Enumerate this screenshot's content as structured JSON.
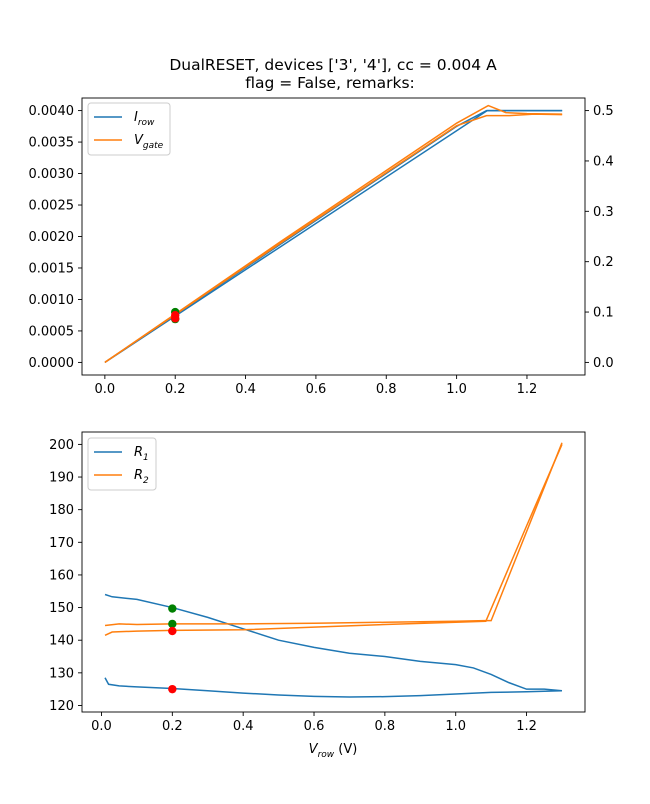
{
  "chart_data": [
    {
      "type": "line",
      "title_lines": [
        "DualRESET, devices ['3', '4'], cc = 0.004 A",
        "flag = False, remarks:"
      ],
      "xlabel": "",
      "ylabel_left": "",
      "ylabel_right": "",
      "xlim": [
        -0.065,
        1.365
      ],
      "ylim_left": [
        -0.0002,
        0.0042
      ],
      "ylim_right": [
        -0.025,
        0.525
      ],
      "xticks": [
        0.0,
        0.2,
        0.4,
        0.6,
        0.8,
        1.0,
        1.2
      ],
      "xtick_labels": [
        "0.0",
        "0.2",
        "0.4",
        "0.6",
        "0.8",
        "1.0",
        "1.2"
      ],
      "yticks_left": [
        0.0,
        0.0005,
        0.001,
        0.0015,
        0.002,
        0.0025,
        0.003,
        0.0035,
        0.004
      ],
      "ytick_labels_left": [
        "0.0000",
        "0.0005",
        "0.0010",
        "0.0015",
        "0.0020",
        "0.0025",
        "0.0030",
        "0.0035",
        "0.0040"
      ],
      "yticks_right": [
        0.0,
        0.1,
        0.2,
        0.3,
        0.4,
        0.5
      ],
      "ytick_labels_right": [
        "0.0",
        "0.1",
        "0.2",
        "0.3",
        "0.4",
        "0.5"
      ],
      "legend_position": "upper-left",
      "grid": false,
      "series": [
        {
          "name": "I_row",
          "label_main": "I",
          "label_sub": "row",
          "color": "#1f77b4",
          "axis": "left",
          "lines": [
            [
              [
                0.0,
                0.0
              ],
              [
                0.5,
                0.00184
              ],
              [
                1.0,
                0.00368
              ],
              [
                1.087,
                0.004
              ],
              [
                1.3,
                0.004
              ]
            ],
            [
              [
                0.0,
                0.0
              ],
              [
                0.5,
                0.00188
              ],
              [
                1.0,
                0.00375
              ],
              [
                1.085,
                0.004
              ],
              [
                1.3,
                0.004
              ]
            ]
          ]
        },
        {
          "name": "V_gate",
          "label_main": "V",
          "label_sub": "gate",
          "color": "#ff7f0e",
          "axis": "right",
          "lines": [
            [
              [
                0.0,
                0.0
              ],
              [
                0.5,
                0.24
              ],
              [
                1.0,
                0.475
              ],
              [
                1.09,
                0.51
              ],
              [
                1.14,
                0.496
              ],
              [
                1.2,
                0.494
              ],
              [
                1.3,
                0.493
              ]
            ],
            [
              [
                0.0,
                0.0
              ],
              [
                0.5,
                0.237
              ],
              [
                1.0,
                0.47
              ],
              [
                1.085,
                0.49
              ],
              [
                1.15,
                0.49
              ],
              [
                1.22,
                0.493
              ],
              [
                1.3,
                0.492
              ]
            ]
          ]
        }
      ],
      "markers": [
        {
          "x": 0.2,
          "y": 0.1,
          "axis": "right",
          "color": "#008000"
        },
        {
          "x": 0.2,
          "y": 0.086,
          "axis": "right",
          "color": "#008000"
        },
        {
          "x": 0.2,
          "y": 0.00075,
          "axis": "left",
          "color": "#ff0000"
        },
        {
          "x": 0.2,
          "y": 0.0007,
          "axis": "left",
          "color": "#ff0000"
        }
      ]
    },
    {
      "type": "line",
      "xlabel_main": "V",
      "xlabel_sub": "row",
      "xlabel_unit": " (V)",
      "ylabel": "",
      "xlim": [
        -0.055,
        1.365
      ],
      "ylim": [
        118.0,
        203.8
      ],
      "xticks": [
        0.0,
        0.2,
        0.4,
        0.6,
        0.8,
        1.0,
        1.2
      ],
      "xtick_labels": [
        "0.0",
        "0.2",
        "0.4",
        "0.6",
        "0.8",
        "1.0",
        "1.2"
      ],
      "yticks": [
        120,
        130,
        140,
        150,
        160,
        170,
        180,
        190,
        200
      ],
      "ytick_labels": [
        "120",
        "130",
        "140",
        "150",
        "160",
        "170",
        "180",
        "190",
        "200"
      ],
      "legend_position": "upper-left",
      "grid": false,
      "series": [
        {
          "name": "R_1",
          "label_main": "R",
          "label_sub": "1",
          "color": "#1f77b4",
          "lines": [
            [
              [
                0.01,
                154.0
              ],
              [
                0.03,
                153.3
              ],
              [
                0.1,
                152.5
              ],
              [
                0.2,
                150.0
              ],
              [
                0.3,
                147.0
              ],
              [
                0.4,
                143.5
              ],
              [
                0.5,
                140.0
              ],
              [
                0.6,
                137.8
              ],
              [
                0.7,
                136.0
              ],
              [
                0.8,
                135.0
              ],
              [
                0.9,
                133.5
              ],
              [
                1.0,
                132.5
              ],
              [
                1.05,
                131.5
              ],
              [
                1.1,
                129.5
              ],
              [
                1.15,
                127.0
              ],
              [
                1.2,
                125.0
              ],
              [
                1.25,
                125.0
              ],
              [
                1.3,
                124.5
              ]
            ],
            [
              [
                0.01,
                128.5
              ],
              [
                0.02,
                126.5
              ],
              [
                0.05,
                126.0
              ],
              [
                0.1,
                125.7
              ],
              [
                0.2,
                125.2
              ],
              [
                0.3,
                124.5
              ],
              [
                0.4,
                123.8
              ],
              [
                0.5,
                123.2
              ],
              [
                0.6,
                122.8
              ],
              [
                0.7,
                122.6
              ],
              [
                0.8,
                122.7
              ],
              [
                0.9,
                123.0
              ],
              [
                1.0,
                123.5
              ],
              [
                1.1,
                124.0
              ],
              [
                1.2,
                124.2
              ],
              [
                1.3,
                124.5
              ]
            ]
          ]
        },
        {
          "name": "R_2",
          "label_main": "R",
          "label_sub": "2",
          "color": "#ff7f0e",
          "lines": [
            [
              [
                0.01,
                144.5
              ],
              [
                0.05,
                145.0
              ],
              [
                0.1,
                144.8
              ],
              [
                0.2,
                145.0
              ],
              [
                0.4,
                145.0
              ],
              [
                0.6,
                145.2
              ],
              [
                0.8,
                145.5
              ],
              [
                1.0,
                145.8
              ],
              [
                1.08,
                146.0
              ],
              [
                1.1,
                146.0
              ],
              [
                1.3,
                200.5
              ]
            ],
            [
              [
                0.01,
                141.5
              ],
              [
                0.03,
                142.5
              ],
              [
                0.1,
                142.8
              ],
              [
                0.2,
                143.0
              ],
              [
                0.4,
                143.2
              ],
              [
                0.6,
                144.0
              ],
              [
                0.8,
                144.8
              ],
              [
                1.0,
                145.5
              ],
              [
                1.085,
                145.8
              ],
              [
                1.2,
                175.0
              ],
              [
                1.3,
                200.0
              ]
            ]
          ]
        }
      ],
      "markers": [
        {
          "x": 0.2,
          "y": 149.7,
          "color": "#008000"
        },
        {
          "x": 0.2,
          "y": 145.0,
          "color": "#008000"
        },
        {
          "x": 0.2,
          "y": 142.8,
          "color": "#ff0000"
        },
        {
          "x": 0.2,
          "y": 125.0,
          "color": "#ff0000"
        }
      ]
    }
  ]
}
